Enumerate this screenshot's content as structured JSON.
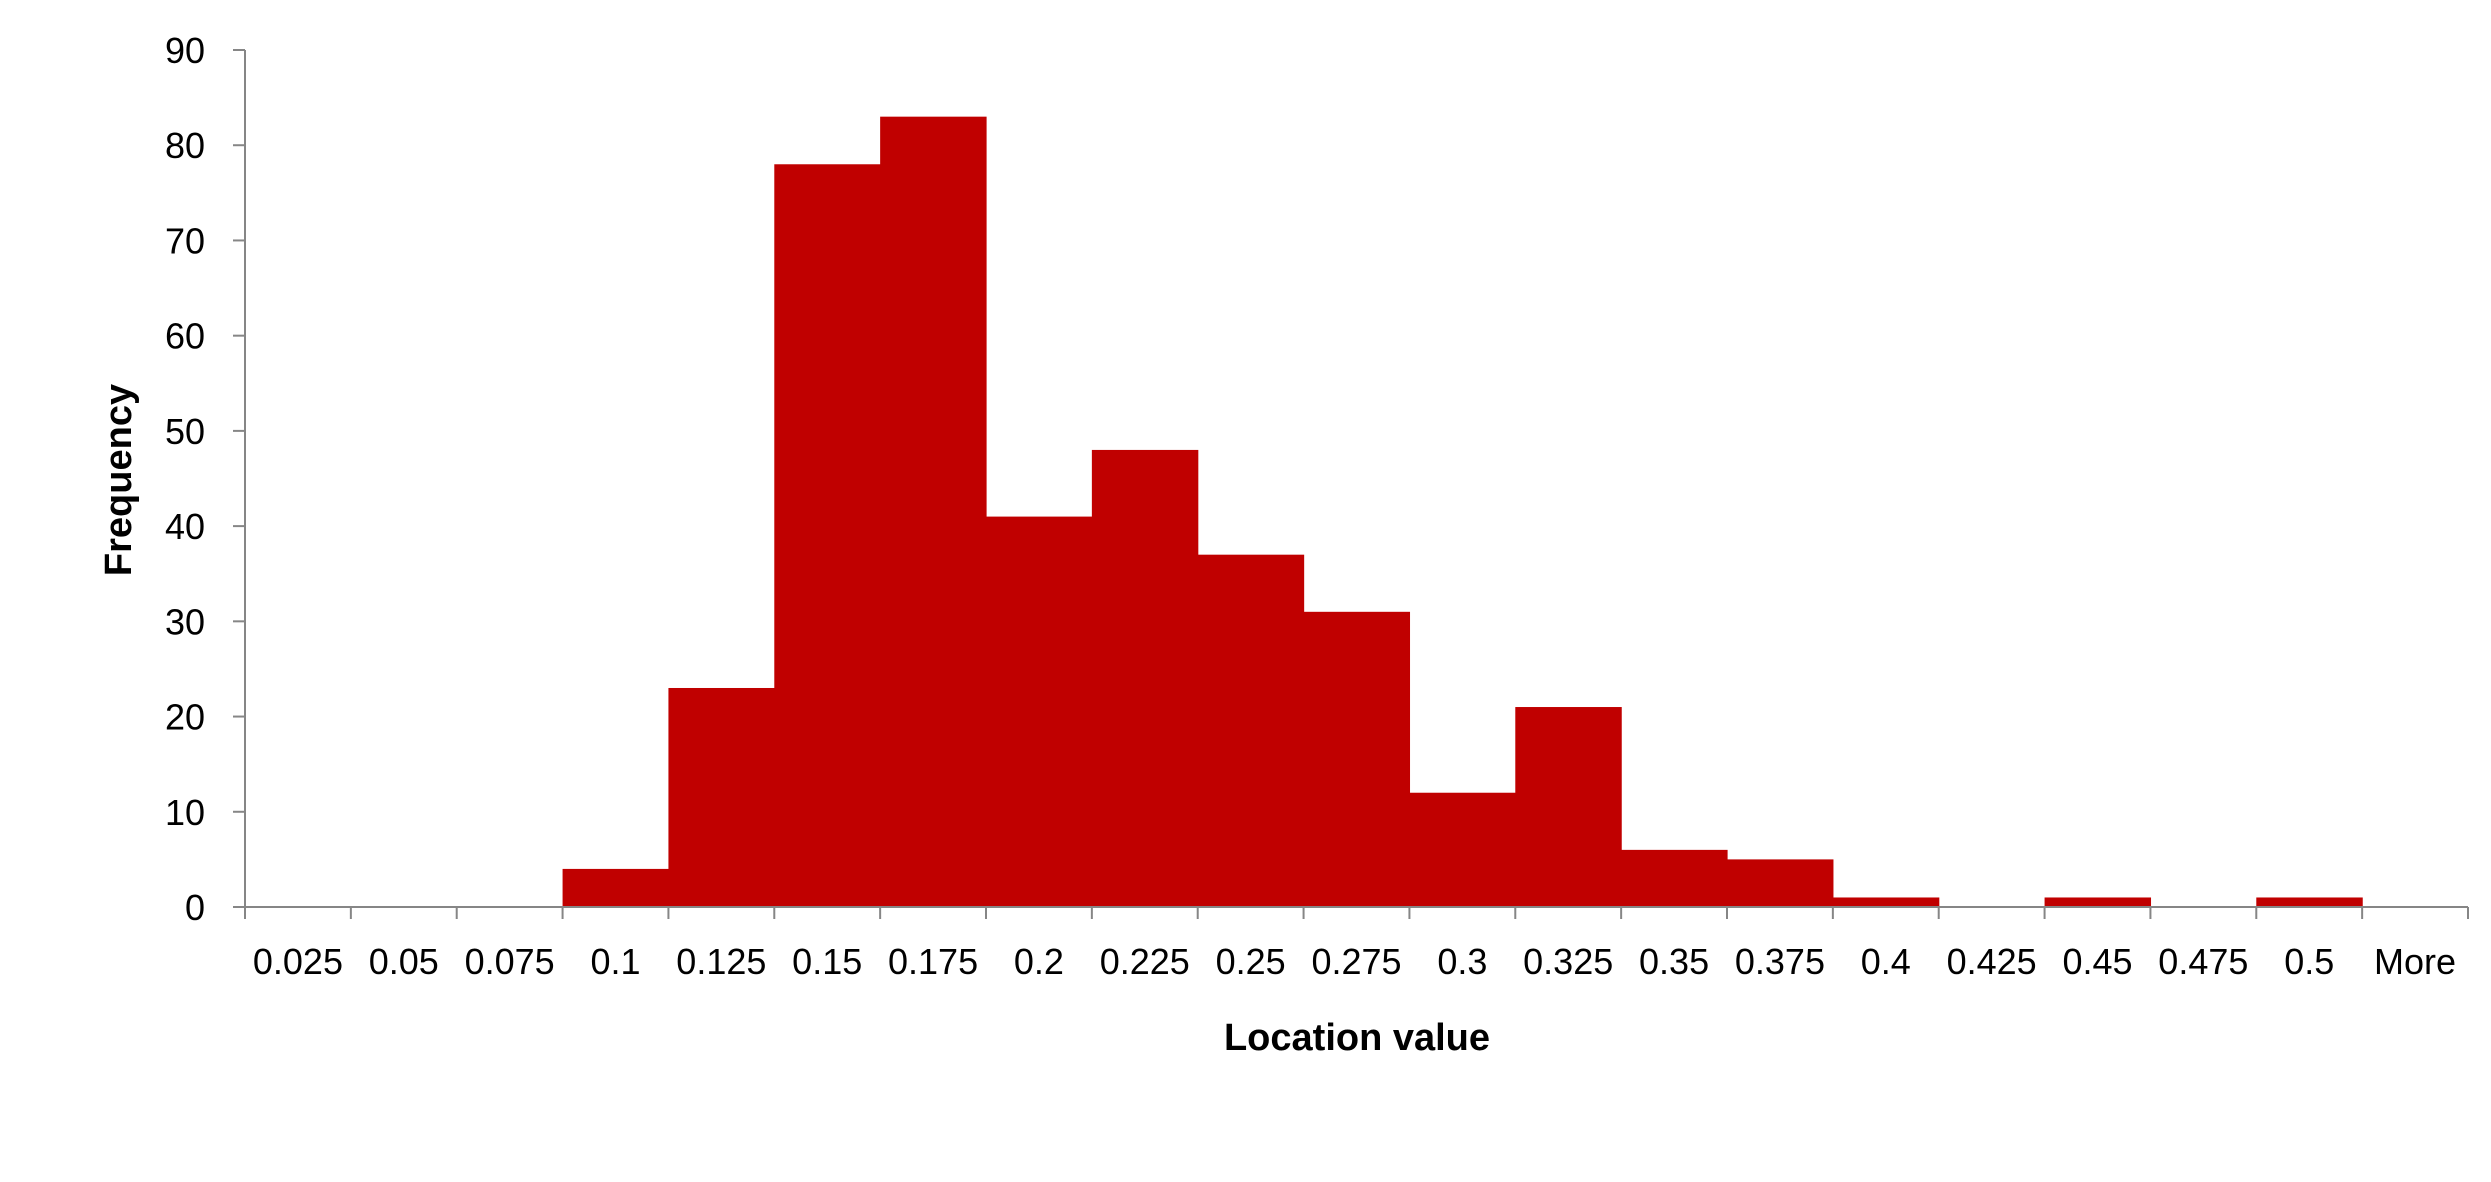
{
  "chart_data": {
    "type": "bar",
    "title": "",
    "xlabel": "Location value",
    "ylabel": "Frequency",
    "categories": [
      "0.025",
      "0.05",
      "0.075",
      "0.1",
      "0.125",
      "0.15",
      "0.175",
      "0.2",
      "0.225",
      "0.25",
      "0.275",
      "0.3",
      "0.325",
      "0.35",
      "0.375",
      "0.4",
      "0.425",
      "0.45",
      "0.475",
      "0.5",
      "More"
    ],
    "values": [
      0,
      0,
      0,
      4,
      23,
      78,
      83,
      41,
      48,
      37,
      31,
      12,
      21,
      6,
      5,
      1,
      0,
      1,
      0,
      1,
      0
    ],
    "ylim": [
      0,
      90
    ],
    "yticks": [
      0,
      10,
      20,
      30,
      40,
      50,
      60,
      70,
      80,
      90
    ],
    "bar_color": "#C00000",
    "axis_color": "#868686",
    "grid": false,
    "legend": "none"
  }
}
